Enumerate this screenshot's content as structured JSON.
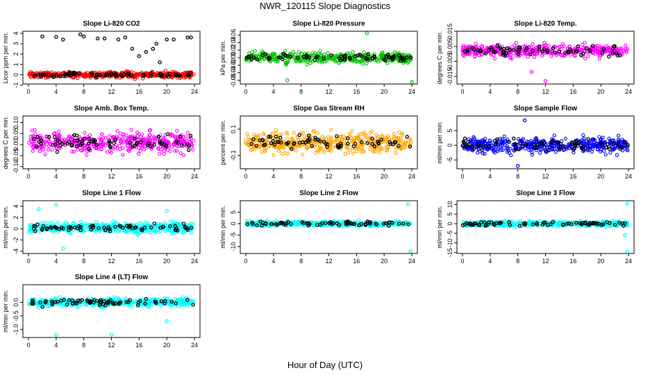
{
  "figure": {
    "title": "NWR_120115  Slope Diagnostics",
    "xlabel": "Hour of Day (UTC)"
  },
  "chart_data": [
    {
      "type": "scatter",
      "title": "Slope Li-820 CO2",
      "ylabel": "Licor ppm per min.",
      "xlim": [
        -0.8,
        24.8
      ],
      "ylim": [
        -0.9,
        4.2
      ],
      "xticks": [
        "0",
        "4",
        "8",
        "12",
        "16",
        "20",
        "24"
      ],
      "yticks": [
        "-1",
        "0",
        "1",
        "2",
        "3",
        "4"
      ],
      "colors": {
        "main": "#ff0000",
        "overlay": "#000000"
      },
      "main_band": {
        "mean": 0.0,
        "spread": 0.28
      },
      "overlay_band": {
        "mean": 0.0,
        "spread": 0.2
      },
      "outliers": [
        [
          2,
          3.7
        ],
        [
          4,
          3.65
        ],
        [
          5,
          3.4
        ],
        [
          7.5,
          3.9
        ],
        [
          8,
          3.7
        ],
        [
          10,
          3.5
        ],
        [
          11,
          3.5
        ],
        [
          13,
          3.4
        ],
        [
          14,
          3.6
        ],
        [
          15,
          2.5
        ],
        [
          16,
          1.8
        ],
        [
          17,
          2.2
        ],
        [
          18,
          2.5
        ],
        [
          18.5,
          3.0
        ],
        [
          19,
          1.2
        ],
        [
          20,
          3.4
        ],
        [
          21,
          3.4
        ],
        [
          23,
          3.6
        ],
        [
          23.5,
          3.6
        ]
      ]
    },
    {
      "type": "scatter",
      "title": "Slope Li-820 Pressure",
      "ylabel": "kPa per min.",
      "xlim": [
        -0.8,
        24.8
      ],
      "ylim": [
        -0.07,
        0.07
      ],
      "xticks": [
        "0",
        "4",
        "8",
        "12",
        "16",
        "20",
        "24"
      ],
      "yticks": [
        "-0.06",
        "-0.04",
        "-0.02",
        "0.00",
        "0.02",
        "0.04",
        "0.06"
      ],
      "colors": {
        "main": "#00c000",
        "overlay": "#000000"
      },
      "main_band": {
        "mean": 0.0,
        "spread": 0.013
      },
      "overlay_band": {
        "mean": 0.0,
        "spread": 0.01
      },
      "outliers": [
        [
          6,
          -0.06
        ],
        [
          17.5,
          0.065
        ],
        [
          24,
          -0.065
        ]
      ]
    },
    {
      "type": "scatter",
      "title": "Slope Li-820 Temp.",
      "ylabel": "degrees C per min.",
      "xlim": [
        -0.8,
        24.8
      ],
      "ylim": [
        -0.02,
        0.015
      ],
      "xticks": [
        "0",
        "4",
        "8",
        "12",
        "16",
        "20",
        "24"
      ],
      "yticks": [
        "-0.015",
        "-0.005",
        "0.005",
        "0.015"
      ],
      "colors": {
        "main": "#ff00ff",
        "overlay": "#000000"
      },
      "main_band": {
        "mean": 0.002,
        "spread": 0.004
      },
      "overlay_band": {
        "mean": 0.002,
        "spread": 0.003
      },
      "outliers": [
        [
          12,
          -0.018
        ],
        [
          10,
          -0.012
        ]
      ]
    },
    {
      "type": "scatter",
      "title": "Slope Amb. Box Temp.",
      "ylabel": "degrees C per min.",
      "xlim": [
        -0.8,
        24.8
      ],
      "ylim": [
        -0.11,
        0.13
      ],
      "xticks": [
        "0",
        "4",
        "8",
        "12",
        "16",
        "20",
        "24"
      ],
      "yticks": [
        "-0.10",
        "-0.05",
        "0.00",
        "0.05",
        "0.10"
      ],
      "colors": {
        "main": "#ff00ff",
        "overlay": "#000000"
      },
      "main_band": {
        "mean": 0.01,
        "spread": 0.045
      },
      "overlay_band": {
        "mean": 0.01,
        "spread": 0.03
      },
      "outliers": []
    },
    {
      "type": "scatter",
      "title": "Slope Gas Stream RH",
      "ylabel": "percent per min.",
      "xlim": [
        -0.8,
        24.8
      ],
      "ylim": [
        -0.2,
        0.2
      ],
      "xticks": [
        "0",
        "4",
        "8",
        "12",
        "16",
        "20",
        "24"
      ],
      "yticks": [
        "-0.1",
        "0.1"
      ],
      "colors": {
        "main": "#ffa500",
        "overlay": "#000000"
      },
      "main_band": {
        "mean": 0.0,
        "spread": 0.07
      },
      "overlay_band": {
        "mean": 0.0,
        "spread": 0.05
      },
      "outliers": []
    },
    {
      "type": "scatter",
      "title": "Slope Sample Flow",
      "ylabel": "ml/min per min.",
      "xlim": [
        -0.8,
        24.8
      ],
      "ylim": [
        -8,
        10
      ],
      "xticks": [
        "0",
        "4",
        "8",
        "12",
        "16",
        "20",
        "24"
      ],
      "yticks": [
        "-5",
        "0",
        "5"
      ],
      "colors": {
        "main": "#0000ff",
        "overlay": "#000000"
      },
      "main_band": {
        "mean": 0.0,
        "spread": 2.5
      },
      "overlay_band": {
        "mean": 0.0,
        "spread": 2.0
      },
      "outliers": [
        [
          9,
          8.5
        ],
        [
          8,
          -7
        ]
      ]
    },
    {
      "type": "scatter",
      "title": "Slope Line 1 Flow",
      "ylabel": "ml/min per min.",
      "xlim": [
        -0.8,
        24.8
      ],
      "ylim": [
        -4.4,
        5
      ],
      "xticks": [
        "0",
        "4",
        "8",
        "12",
        "16",
        "20",
        "24"
      ],
      "yticks": [
        "-4",
        "-2",
        "0",
        "2",
        "4"
      ],
      "colors": {
        "main": "#00ffff",
        "overlay": "#000000"
      },
      "main_band": {
        "mean": 0.2,
        "spread": 0.9
      },
      "overlay_band": {
        "mean": 0.2,
        "spread": 0.6
      },
      "outliers": [
        [
          4,
          4.3
        ],
        [
          5,
          -3.5
        ],
        [
          1.5,
          3.5
        ],
        [
          20,
          3.2
        ]
      ]
    },
    {
      "type": "scatter",
      "title": "Slope Line 2 Flow",
      "ylabel": "ml/min per min.",
      "xlim": [
        -0.8,
        24.8
      ],
      "ylim": [
        -13,
        10
      ],
      "xticks": [
        "0",
        "4",
        "8",
        "12",
        "16",
        "20",
        "24"
      ],
      "yticks": [
        "-10",
        "-5",
        "0",
        "5"
      ],
      "colors": {
        "main": "#00ffff",
        "overlay": "#000000"
      },
      "main_band": {
        "mean": 0.0,
        "spread": 1.0
      },
      "overlay_band": {
        "mean": 0.0,
        "spread": 0.8
      },
      "outliers": [
        [
          23.5,
          8.5
        ],
        [
          23.8,
          -12
        ]
      ]
    },
    {
      "type": "scatter",
      "title": "Slope Line 3 Flow",
      "ylabel": "ml/min per min.",
      "xlim": [
        -0.8,
        24.8
      ],
      "ylim": [
        -15.5,
        12
      ],
      "xticks": [
        "0",
        "4",
        "8",
        "12",
        "16",
        "20",
        "24"
      ],
      "yticks": [
        "-15",
        "-10",
        "-5",
        "0",
        "5",
        "10"
      ],
      "colors": {
        "main": "#00ffff",
        "overlay": "#000000"
      },
      "main_band": {
        "mean": 0.0,
        "spread": 1.3
      },
      "overlay_band": {
        "mean": 0.0,
        "spread": 1.0
      },
      "outliers": [
        [
          23.8,
          10.5
        ],
        [
          23.8,
          -14.5
        ],
        [
          23.5,
          -6
        ]
      ]
    },
    {
      "type": "scatter",
      "title": "Slope Line 4 (LT) Flow",
      "ylabel": "ml/min per min.",
      "xlim": [
        -0.8,
        24.8
      ],
      "ylim": [
        -1.3,
        0.65
      ],
      "xticks": [
        "0",
        "4",
        "8",
        "12",
        "16",
        "20",
        "24"
      ],
      "yticks": [
        "-1.0",
        "-0.5",
        "0.0"
      ],
      "colors": {
        "main": "#00ffff",
        "overlay": "#000000"
      },
      "main_band": {
        "mean": 0.0,
        "spread": 0.14
      },
      "overlay_band": {
        "mean": 0.0,
        "spread": 0.12
      },
      "outliers": [
        [
          4,
          -1.2
        ],
        [
          12,
          -1.2
        ],
        [
          20,
          -0.7
        ]
      ]
    }
  ]
}
